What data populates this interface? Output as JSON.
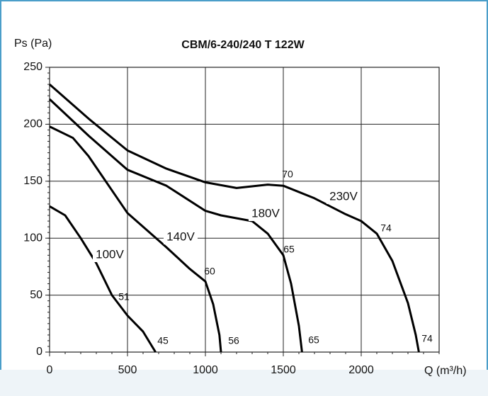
{
  "chart_data": {
    "type": "line",
    "title": "CBM/6-240/240 T 122W",
    "y_label": "Ps  (Pa)",
    "x_label": "Q (m³/h)",
    "xlim": [
      0,
      2500
    ],
    "ylim": [
      0,
      250
    ],
    "xticks": [
      0,
      500,
      1000,
      1500,
      2000
    ],
    "yticks": [
      0,
      50,
      100,
      150,
      200,
      250
    ],
    "grid": true,
    "series": [
      {
        "name": "230V",
        "color": "#000000",
        "x": [
          0,
          250,
          500,
          750,
          1000,
          1200,
          1400,
          1500,
          1700,
          1900,
          2000,
          2100,
          2200,
          2300,
          2350,
          2370
        ],
        "values": [
          235,
          205,
          177,
          161,
          149,
          144,
          147,
          146,
          135,
          121,
          115,
          104,
          80,
          43,
          15,
          0
        ]
      },
      {
        "name": "180V",
        "color": "#000000",
        "x": [
          0,
          250,
          500,
          750,
          1000,
          1100,
          1300,
          1400,
          1500,
          1550,
          1600,
          1620
        ],
        "values": [
          222,
          190,
          160,
          146,
          124,
          120,
          115,
          104,
          85,
          60,
          23,
          0
        ]
      },
      {
        "name": "140V",
        "color": "#000000",
        "x": [
          0,
          150,
          250,
          500,
          750,
          900,
          1000,
          1050,
          1090,
          1100
        ],
        "values": [
          198,
          188,
          172,
          122,
          92,
          73,
          62,
          42,
          15,
          0
        ]
      },
      {
        "name": "100V",
        "color": "#000000",
        "x": [
          0,
          100,
          200,
          300,
          400,
          500,
          600,
          680
        ],
        "values": [
          128,
          120,
          100,
          78,
          50,
          32,
          18,
          0
        ]
      }
    ],
    "annotations": [
      "51",
      "45",
      "60",
      "56",
      "65",
      "65",
      "70",
      "74",
      "74"
    ]
  }
}
